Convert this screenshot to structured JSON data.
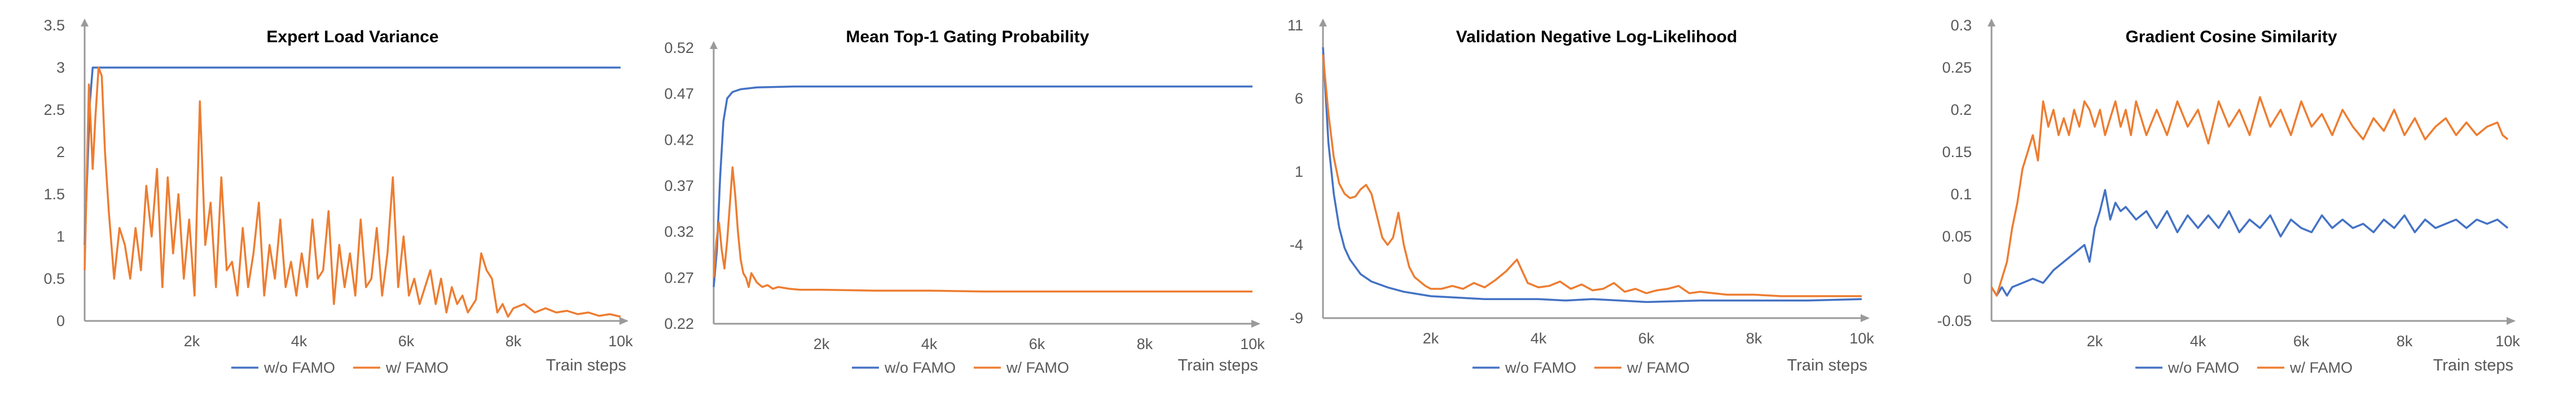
{
  "colors": {
    "w_o_famo": "#4472C4",
    "w_famo": "#ED7D31",
    "axis": "#9a9a9a",
    "text": "#595959"
  },
  "chart_data": [
    {
      "type": "line",
      "title": "Expert Load Variance",
      "xlabel": "Train steps",
      "ylabel": "",
      "xlim": [
        0,
        10000
      ],
      "ylim": [
        0,
        3.5
      ],
      "x_ticks": [
        "2k",
        "4k",
        "6k",
        "8k",
        "10k"
      ],
      "y_ticks": [
        "0",
        "0.5",
        "1",
        "1.5",
        "2",
        "2.5",
        "3",
        "3.5"
      ],
      "grid": false,
      "legend": "bottom",
      "series": [
        {
          "name": "w/o FAMO",
          "color": "#4472C4",
          "x": [
            0,
            100,
            150,
            200,
            400,
            1000,
            2000,
            4000,
            6000,
            8000,
            10000
          ],
          "y": [
            0.9,
            2.6,
            3.0,
            3.0,
            3.0,
            3.0,
            3.0,
            3.0,
            3.0,
            3.0,
            3.0
          ]
        },
        {
          "name": "w/ FAMO",
          "color": "#ED7D31",
          "x": [
            0,
            80,
            150,
            200,
            260,
            320,
            380,
            450,
            550,
            650,
            750,
            850,
            950,
            1050,
            1150,
            1250,
            1350,
            1450,
            1550,
            1650,
            1750,
            1850,
            1950,
            2050,
            2150,
            2250,
            2350,
            2450,
            2550,
            2650,
            2750,
            2850,
            2950,
            3050,
            3150,
            3250,
            3350,
            3450,
            3550,
            3650,
            3750,
            3850,
            3950,
            4050,
            4150,
            4250,
            4350,
            4450,
            4550,
            4650,
            4750,
            4850,
            4950,
            5050,
            5150,
            5250,
            5350,
            5450,
            5550,
            5650,
            5750,
            5850,
            5950,
            6050,
            6150,
            6250,
            6350,
            6450,
            6550,
            6650,
            6750,
            6850,
            6950,
            7050,
            7150,
            7300,
            7400,
            7500,
            7600,
            7700,
            7800,
            7900,
            8000,
            8200,
            8400,
            8600,
            8800,
            9000,
            9200,
            9400,
            9600,
            9800,
            10000
          ],
          "y": [
            0.6,
            2.8,
            1.8,
            2.4,
            3.0,
            2.9,
            2.0,
            1.3,
            0.5,
            1.1,
            0.9,
            0.5,
            1.1,
            0.6,
            1.6,
            1.0,
            1.8,
            0.4,
            1.7,
            0.8,
            1.5,
            0.5,
            1.2,
            0.3,
            2.6,
            0.9,
            1.4,
            0.4,
            1.7,
            0.6,
            0.7,
            0.3,
            1.1,
            0.4,
            0.8,
            1.4,
            0.3,
            0.9,
            0.5,
            1.2,
            0.4,
            0.7,
            0.3,
            0.8,
            0.4,
            1.2,
            0.5,
            0.6,
            1.3,
            0.2,
            0.9,
            0.4,
            0.8,
            0.3,
            1.2,
            0.4,
            0.5,
            1.1,
            0.3,
            0.8,
            1.7,
            0.4,
            1.0,
            0.3,
            0.5,
            0.2,
            0.4,
            0.6,
            0.2,
            0.5,
            0.1,
            0.4,
            0.2,
            0.3,
            0.1,
            0.25,
            0.8,
            0.6,
            0.5,
            0.1,
            0.2,
            0.05,
            0.15,
            0.2,
            0.1,
            0.15,
            0.1,
            0.12,
            0.08,
            0.1,
            0.06,
            0.08,
            0.05
          ]
        }
      ]
    },
    {
      "type": "line",
      "title": "Mean Top-1 Gating Probability",
      "xlabel": "Train steps",
      "ylabel": "",
      "xlim": [
        0,
        10000
      ],
      "ylim": [
        0.22,
        0.52
      ],
      "x_ticks": [
        "2k",
        "4k",
        "6k",
        "8k",
        "10k"
      ],
      "y_ticks": [
        "0.22",
        "0.27",
        "0.32",
        "0.37",
        "0.42",
        "0.47",
        "0.52"
      ],
      "grid": false,
      "legend": "bottom",
      "series": [
        {
          "name": "w/o FAMO",
          "color": "#4472C4",
          "x": [
            0,
            60,
            120,
            180,
            250,
            350,
            500,
            800,
            1500,
            3000,
            5000,
            8000,
            10000
          ],
          "y": [
            0.26,
            0.3,
            0.38,
            0.44,
            0.465,
            0.472,
            0.475,
            0.477,
            0.478,
            0.478,
            0.478,
            0.478,
            0.478
          ]
        },
        {
          "name": "w/ FAMO",
          "color": "#ED7D31",
          "x": [
            0,
            50,
            100,
            150,
            200,
            250,
            300,
            350,
            400,
            450,
            500,
            550,
            600,
            650,
            700,
            800,
            900,
            1000,
            1100,
            1200,
            1400,
            1600,
            2000,
            3000,
            4000,
            5000,
            6000,
            7000,
            8000,
            9000,
            10000
          ],
          "y": [
            0.27,
            0.31,
            0.33,
            0.3,
            0.28,
            0.31,
            0.35,
            0.39,
            0.36,
            0.32,
            0.29,
            0.275,
            0.27,
            0.26,
            0.275,
            0.265,
            0.26,
            0.262,
            0.258,
            0.26,
            0.258,
            0.257,
            0.257,
            0.256,
            0.256,
            0.255,
            0.255,
            0.255,
            0.255,
            0.255,
            0.255
          ]
        }
      ]
    },
    {
      "type": "line",
      "title": "Validation Negative Log-Likelihood",
      "xlabel": "Train steps",
      "ylabel": "",
      "xlim": [
        0,
        10000
      ],
      "ylim": [
        -9,
        11
      ],
      "x_ticks": [
        "2k",
        "4k",
        "6k",
        "8k",
        "10k"
      ],
      "y_ticks": [
        "-9",
        "-4",
        "1",
        "6",
        "11"
      ],
      "grid": false,
      "legend": "bottom",
      "series": [
        {
          "name": "w/o FAMO",
          "color": "#4472C4",
          "x": [
            0,
            100,
            200,
            300,
            400,
            500,
            700,
            900,
            1200,
            1500,
            2000,
            2500,
            3000,
            4000,
            4500,
            5000,
            5500,
            6000,
            7000,
            8000,
            9000,
            10000
          ],
          "y": [
            9.5,
            3.0,
            -0.5,
            -2.8,
            -4.2,
            -5.0,
            -6.0,
            -6.5,
            -6.9,
            -7.2,
            -7.5,
            -7.6,
            -7.7,
            -7.7,
            -7.8,
            -7.7,
            -7.8,
            -7.9,
            -7.8,
            -7.8,
            -7.8,
            -7.7
          ]
        },
        {
          "name": "w/ FAMO",
          "color": "#ED7D31",
          "x": [
            0,
            100,
            200,
            300,
            400,
            500,
            600,
            700,
            800,
            900,
            1000,
            1100,
            1200,
            1300,
            1400,
            1500,
            1600,
            1700,
            1800,
            1900,
            2000,
            2200,
            2400,
            2600,
            2800,
            3000,
            3200,
            3400,
            3600,
            3800,
            4000,
            4200,
            4400,
            4600,
            4800,
            5000,
            5200,
            5400,
            5600,
            5800,
            6000,
            6200,
            6400,
            6600,
            6800,
            7000,
            7500,
            8000,
            8500,
            9000,
            10000
          ],
          "y": [
            9.0,
            5.0,
            2.0,
            0.2,
            -0.5,
            -0.8,
            -0.7,
            -0.2,
            0.1,
            -0.5,
            -2.0,
            -3.5,
            -4.0,
            -3.5,
            -1.8,
            -4.0,
            -5.5,
            -6.2,
            -6.5,
            -6.8,
            -7.0,
            -7.0,
            -6.8,
            -7.0,
            -6.6,
            -6.9,
            -6.4,
            -5.8,
            -5.0,
            -6.6,
            -6.9,
            -6.8,
            -6.5,
            -7.0,
            -6.7,
            -7.1,
            -7.0,
            -6.6,
            -7.2,
            -7.0,
            -7.3,
            -7.1,
            -7.0,
            -6.8,
            -7.3,
            -7.2,
            -7.4,
            -7.4,
            -7.5,
            -7.5,
            -7.5
          ]
        }
      ]
    },
    {
      "type": "line",
      "title": "Gradient Cosine Similarity",
      "xlabel": "Train steps",
      "ylabel": "",
      "xlim": [
        0,
        10000
      ],
      "ylim": [
        -0.05,
        0.3
      ],
      "x_ticks": [
        "2k",
        "4k",
        "6k",
        "8k",
        "10k"
      ],
      "y_ticks": [
        "-0.05",
        "0",
        "0.05",
        "0.1",
        "0.15",
        "0.2",
        "0.25",
        "0.3"
      ],
      "grid": false,
      "legend": "bottom",
      "series": [
        {
          "name": "w/o FAMO",
          "color": "#4472C4",
          "x": [
            0,
            100,
            200,
            300,
            400,
            600,
            800,
            1000,
            1200,
            1400,
            1600,
            1800,
            1900,
            2000,
            2100,
            2200,
            2300,
            2400,
            2500,
            2600,
            2800,
            3000,
            3200,
            3400,
            3600,
            3800,
            4000,
            4200,
            4400,
            4600,
            4800,
            5000,
            5200,
            5400,
            5600,
            5800,
            6000,
            6200,
            6400,
            6600,
            6800,
            7000,
            7200,
            7400,
            7600,
            7800,
            8000,
            8200,
            8400,
            8600,
            8800,
            9000,
            9200,
            9400,
            9600,
            9800,
            10000
          ],
          "y": [
            -0.01,
            -0.02,
            -0.01,
            -0.02,
            -0.01,
            -0.005,
            0.0,
            -0.005,
            0.01,
            0.02,
            0.03,
            0.04,
            0.02,
            0.06,
            0.08,
            0.105,
            0.07,
            0.09,
            0.08,
            0.085,
            0.07,
            0.08,
            0.06,
            0.08,
            0.055,
            0.075,
            0.06,
            0.075,
            0.06,
            0.08,
            0.055,
            0.07,
            0.06,
            0.075,
            0.05,
            0.07,
            0.06,
            0.055,
            0.075,
            0.06,
            0.07,
            0.06,
            0.065,
            0.055,
            0.07,
            0.06,
            0.075,
            0.055,
            0.07,
            0.06,
            0.065,
            0.07,
            0.06,
            0.07,
            0.065,
            0.07,
            0.06
          ]
        },
        {
          "name": "w/ FAMO",
          "color": "#ED7D31",
          "x": [
            0,
            100,
            200,
            300,
            400,
            500,
            600,
            700,
            800,
            900,
            1000,
            1100,
            1200,
            1300,
            1400,
            1500,
            1600,
            1700,
            1800,
            1900,
            2000,
            2100,
            2200,
            2300,
            2400,
            2500,
            2600,
            2700,
            2800,
            2900,
            3000,
            3200,
            3400,
            3600,
            3800,
            4000,
            4200,
            4400,
            4600,
            4800,
            5000,
            5200,
            5400,
            5600,
            5800,
            6000,
            6200,
            6400,
            6600,
            6800,
            7000,
            7200,
            7400,
            7600,
            7800,
            8000,
            8200,
            8400,
            8600,
            8800,
            9000,
            9200,
            9400,
            9600,
            9800,
            9900,
            10000
          ],
          "y": [
            -0.01,
            -0.02,
            0.0,
            0.02,
            0.06,
            0.09,
            0.13,
            0.15,
            0.17,
            0.14,
            0.21,
            0.18,
            0.2,
            0.17,
            0.19,
            0.17,
            0.2,
            0.18,
            0.21,
            0.2,
            0.18,
            0.2,
            0.17,
            0.19,
            0.21,
            0.18,
            0.2,
            0.17,
            0.21,
            0.19,
            0.17,
            0.2,
            0.17,
            0.21,
            0.18,
            0.2,
            0.16,
            0.21,
            0.18,
            0.2,
            0.17,
            0.215,
            0.18,
            0.2,
            0.17,
            0.21,
            0.18,
            0.195,
            0.17,
            0.2,
            0.18,
            0.165,
            0.19,
            0.175,
            0.2,
            0.17,
            0.19,
            0.165,
            0.18,
            0.19,
            0.17,
            0.185,
            0.17,
            0.18,
            0.185,
            0.17,
            0.165
          ]
        }
      ]
    }
  ]
}
